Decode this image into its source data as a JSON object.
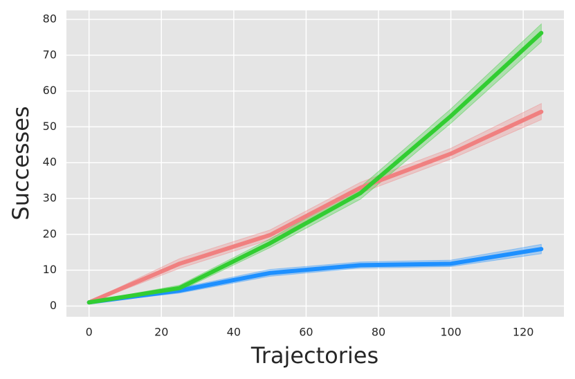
{
  "chart_data": {
    "type": "line",
    "x_label": "Trajectories",
    "y_label": "Successes",
    "x": [
      0,
      25,
      50,
      75,
      100,
      125
    ],
    "series": [
      {
        "color": "#f08080",
        "values": [
          1,
          11.8,
          19.8,
          33,
          42.5,
          54.2
        ],
        "lower": [
          0.8,
          10.5,
          18.5,
          31.5,
          41,
          52
        ],
        "upper": [
          1.2,
          13.2,
          21.2,
          34.5,
          44,
          56.5
        ]
      },
      {
        "color": "#1e90ff",
        "values": [
          1,
          4.3,
          9.2,
          11.4,
          11.8,
          15.9
        ],
        "lower": [
          0.8,
          3.6,
          8.3,
          10.6,
          11,
          14.6
        ],
        "upper": [
          1.2,
          5,
          10.2,
          12.3,
          12.8,
          17.2
        ]
      },
      {
        "color": "#32cd32",
        "values": [
          1,
          5,
          17.5,
          31.5,
          53,
          76.2
        ],
        "lower": [
          0.8,
          4.2,
          16.3,
          29.8,
          51,
          73.7
        ],
        "upper": [
          1.2,
          5.8,
          18.7,
          33.2,
          55,
          78.7
        ]
      }
    ],
    "xlim": [
      -6.25,
      131.25
    ],
    "ylim": [
      -3,
      82.5
    ],
    "xticks": [
      0,
      20,
      40,
      60,
      80,
      100,
      120
    ],
    "yticks": [
      0,
      10,
      20,
      30,
      40,
      50,
      60,
      70,
      80
    ],
    "grid": true,
    "background": "#e5e5e5"
  }
}
